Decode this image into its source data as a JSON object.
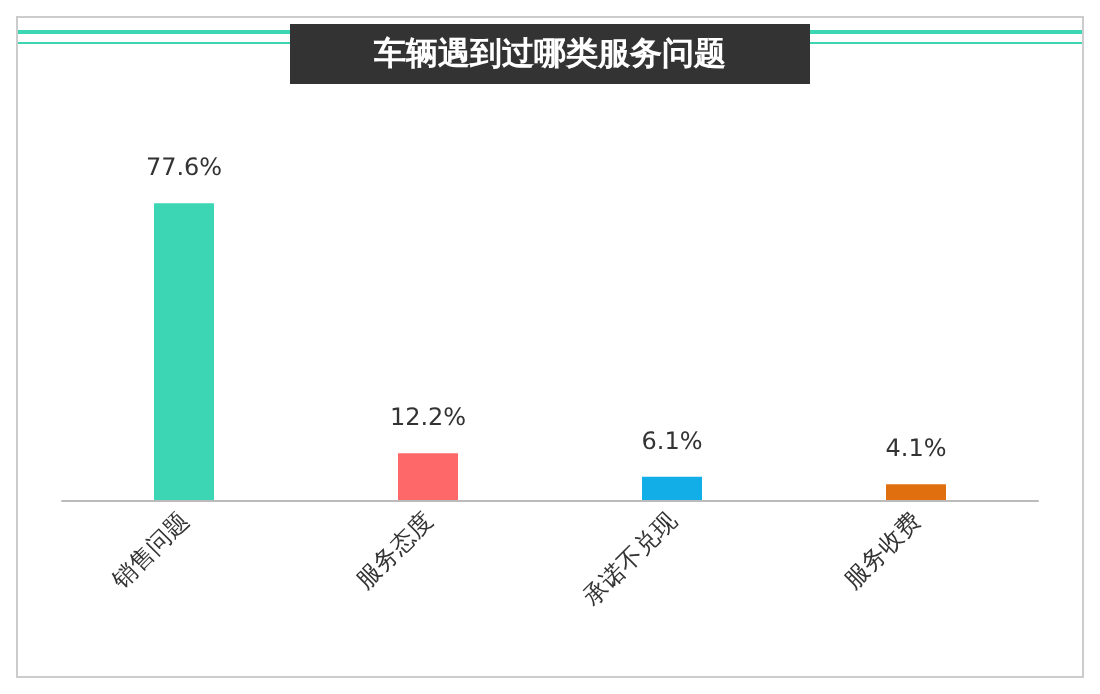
{
  "chart_data": {
    "type": "bar",
    "title": "车辆遇到过哪类服务问题",
    "categories": [
      "销售问题",
      "服务态度",
      "承诺不兑现",
      "服务收费"
    ],
    "values": [
      77.6,
      12.2,
      6.1,
      4.1
    ],
    "colors": [
      "#3dd6b5",
      "#ff6868",
      "#12aee8",
      "#e0700f"
    ],
    "value_labels": [
      "77.6%",
      "12.2%",
      "6.1%",
      "4.1%"
    ]
  }
}
